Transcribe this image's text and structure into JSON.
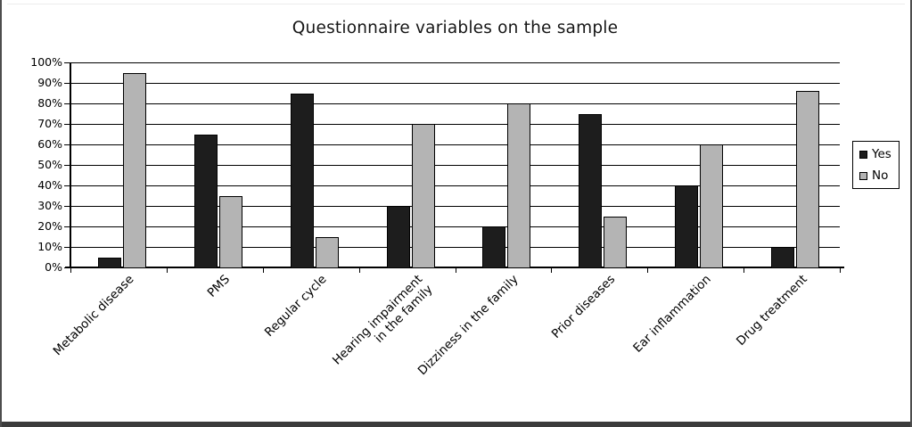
{
  "window": {
    "background": "#ffffff",
    "frame_border_color": "#4e4e4e",
    "bottom_band_color": "#3b3b3b"
  },
  "chart_data": {
    "type": "bar",
    "title": "Questionnaire variables on the sample",
    "categories": [
      "Metabolic disease",
      "PMS",
      "Regular cycle",
      "Hearing impairment\nin the family",
      "Dizziness in the family",
      "Prior diseases",
      "Ear inflammation",
      "Drug treatment"
    ],
    "series": [
      {
        "name": "Yes",
        "color": "#1d1d1d",
        "values": [
          5,
          65,
          85,
          30,
          20,
          75,
          40,
          10
        ]
      },
      {
        "name": "No",
        "color": "#b4b4b4",
        "values": [
          95,
          35,
          15,
          70,
          80,
          25,
          60,
          86
        ]
      }
    ],
    "xlabel": "",
    "ylabel": "",
    "ylim": [
      0,
      100
    ],
    "y_step": 10,
    "y_tick_labels": [
      "0%",
      "10%",
      "20%",
      "30%",
      "40%",
      "50%",
      "60%",
      "70%",
      "80%",
      "90%",
      "100%"
    ],
    "grid": "horizontal",
    "gridline_color": "#000000",
    "legend_position": "right",
    "bar_border_color": "#000000",
    "x_label_rotation_deg": 45
  }
}
